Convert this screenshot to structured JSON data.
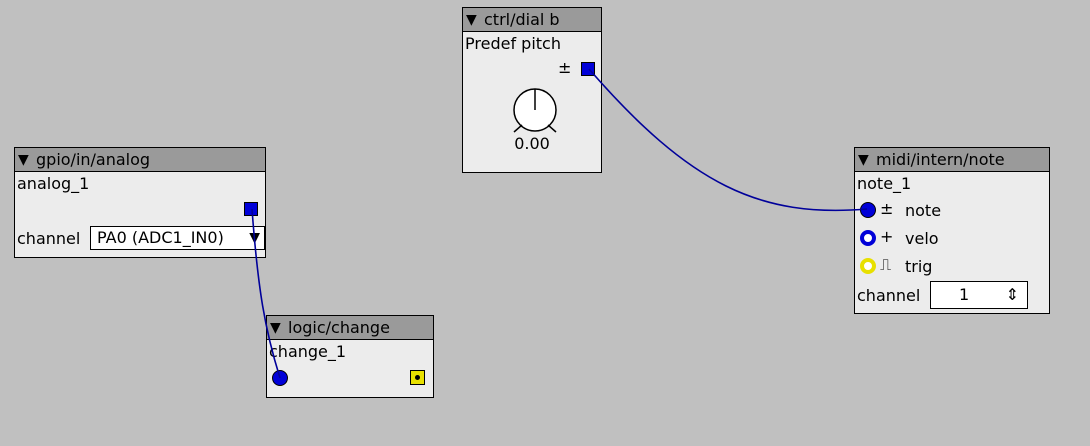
{
  "objects": {
    "dial": {
      "type_label": "ctrl/dial b",
      "instance_name": "Predef pitch",
      "out_sign": "±",
      "value": "0.00"
    },
    "analog": {
      "type_label": "gpio/in/analog",
      "instance_name": "analog_1",
      "channel_label": "channel",
      "channel_value": "PA0 (ADC1_IN0)"
    },
    "change": {
      "type_label": "logic/change",
      "instance_name": "change_1"
    },
    "note": {
      "type_label": "midi/intern/note",
      "instance_name": "note_1",
      "inputs": [
        {
          "sign": "±",
          "label": "note"
        },
        {
          "sign": "+",
          "label": "velo"
        },
        {
          "sign": "⎍",
          "label": "trig"
        }
      ],
      "channel_label": "channel",
      "channel_value": "1"
    }
  },
  "colors": {
    "wire": "#00009a",
    "port_blue": "#0000d8",
    "port_yellow": "#e8e000",
    "header": "#9a9a9a",
    "body": "#ececec",
    "canvas": "#c0c0c0"
  },
  "collapse_glyph": "▼",
  "spinner_glyph": "⇕"
}
